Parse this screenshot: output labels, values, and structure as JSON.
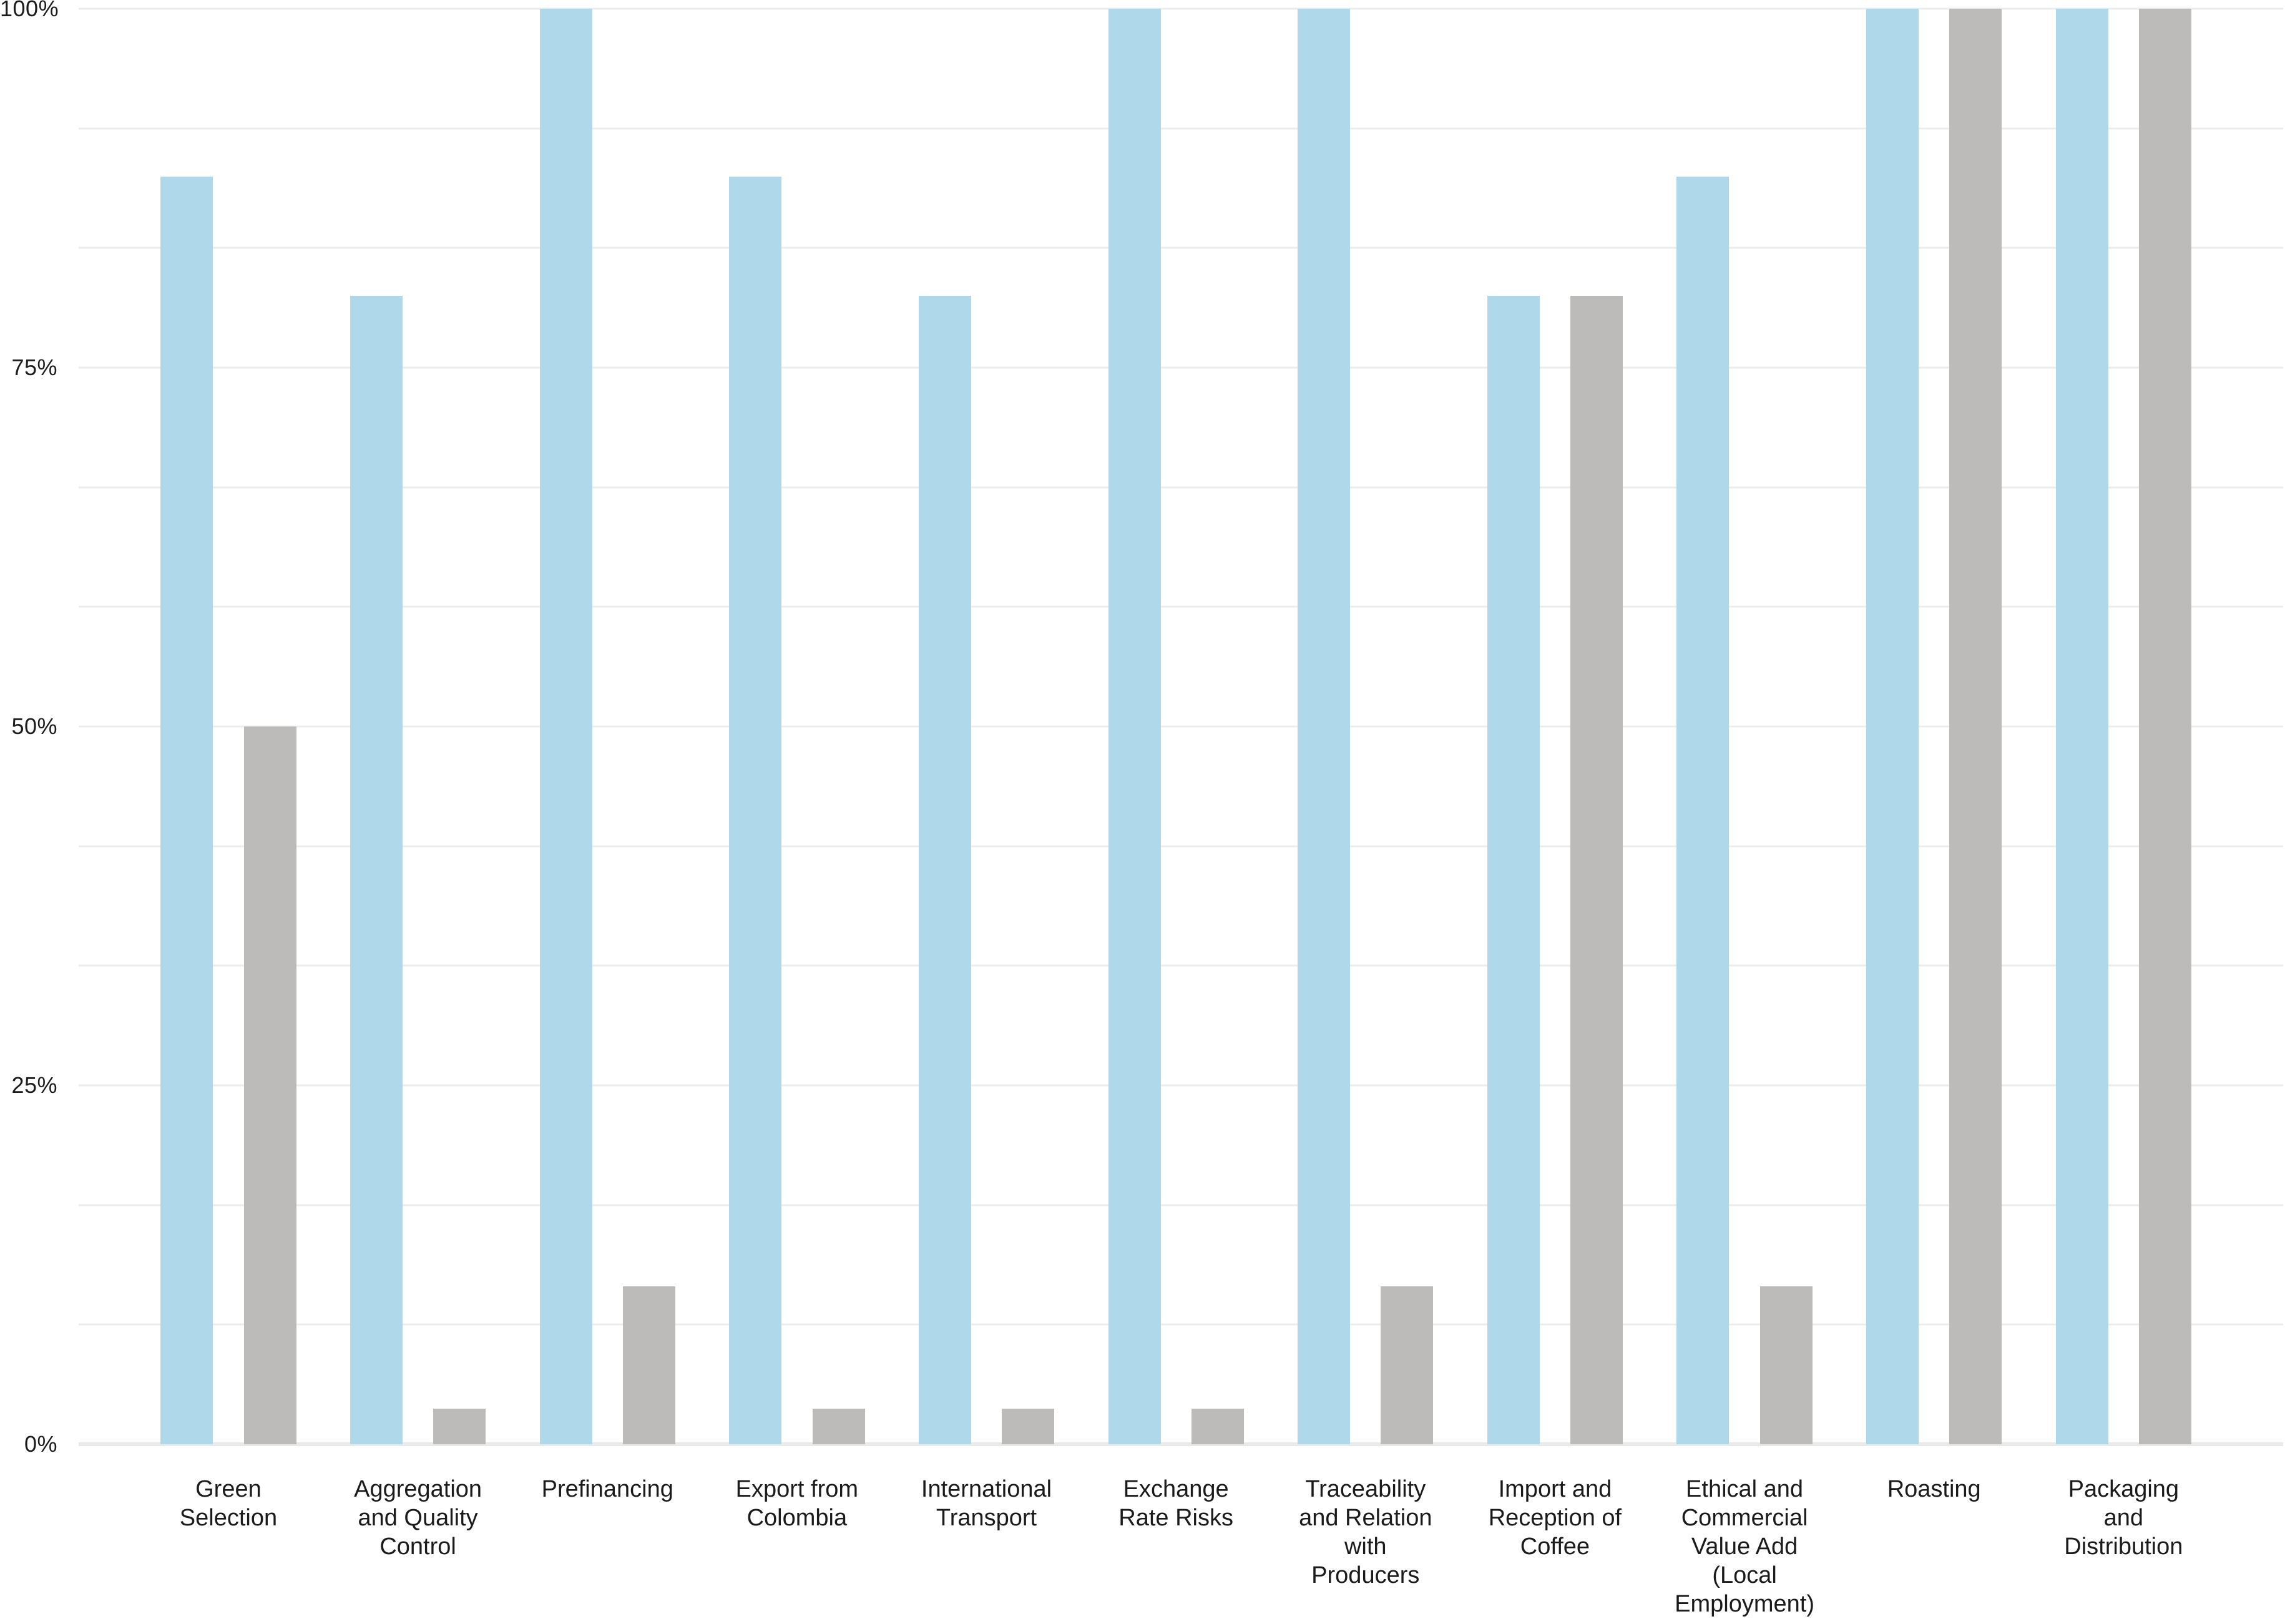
{
  "page": {
    "background": "#ffffff"
  },
  "chart_data": {
    "type": "bar",
    "title": "",
    "categories": [
      "Green Selection",
      "Aggregation and Quality Control",
      "Prefinancing",
      "Export from Colombia",
      "International Transport",
      "Exchange Rate Risks",
      "Traceability and Relation with Producers",
      "Import and Reception of Coffee",
      "Ethical and Commercial Value Add (Local Employment)",
      "Roasting",
      "Packaging and Distribution"
    ],
    "series": [
      {
        "name": "series-blue",
        "color": "#AFD8EA",
        "values": [
          88.3,
          80,
          100,
          88.3,
          80,
          100,
          100,
          80,
          88.3,
          100,
          100
        ]
      },
      {
        "name": "series-gray",
        "color": "#BDBABA",
        "values": [
          50,
          2.5,
          11,
          2.5,
          2.5,
          2.5,
          11,
          80,
          11,
          100,
          100
        ]
      }
    ],
    "y_axis": {
      "tick_labels": [
        "100%",
        "75%",
        "50%",
        "25%",
        "0%"
      ],
      "ylim": [
        0,
        100
      ],
      "minor_gridline_step_pct": 8.333,
      "grid": true
    },
    "legend": {
      "visible": false
    }
  },
  "colors": {
    "gridline": "#ECECEC",
    "zero_line": "#E9E9E9",
    "text": "#1B1B1B",
    "background": "#FFFFFF"
  }
}
